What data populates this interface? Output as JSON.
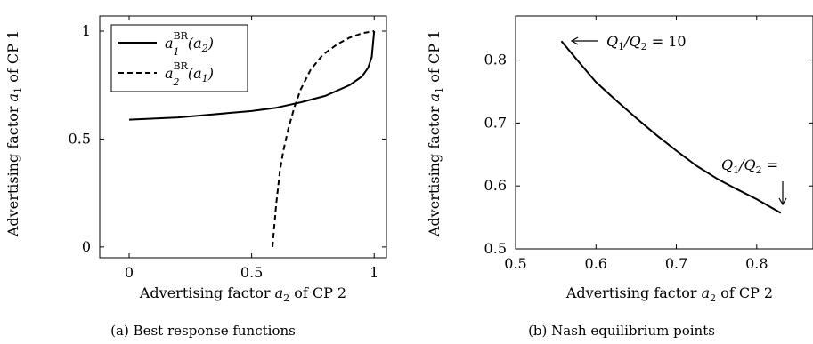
{
  "chart_data": [
    {
      "type": "line",
      "caption": "(a) Best response functions",
      "xlabel": "Advertising factor a2 of CP 2",
      "ylabel": "Advertising factor a1 of CP 1",
      "xlim": [
        -0.12,
        1.05
      ],
      "ylim": [
        -0.05,
        1.07
      ],
      "xticks": [
        "0",
        "0.5",
        "1"
      ],
      "yticks": [
        "0",
        "0.5",
        "1"
      ],
      "legend_position": "top-left",
      "series": [
        {
          "name": "a_1^BR(a_2)",
          "style": "solid",
          "x": [
            0,
            0.1,
            0.2,
            0.3,
            0.4,
            0.5,
            0.6,
            0.7,
            0.8,
            0.85,
            0.9,
            0.95,
            0.975,
            0.99,
            1.0
          ],
          "y": [
            0.59,
            0.595,
            0.6,
            0.61,
            0.62,
            0.63,
            0.645,
            0.67,
            0.7,
            0.725,
            0.75,
            0.79,
            0.83,
            0.88,
            1.0
          ]
        },
        {
          "name": "a_2^BR(a_1)",
          "style": "dashed",
          "x": [
            0.585,
            0.6,
            0.615,
            0.63,
            0.65,
            0.675,
            0.7,
            0.74,
            0.79,
            0.85,
            0.9,
            0.95,
            1.0
          ],
          "y": [
            0.0,
            0.2,
            0.35,
            0.45,
            0.55,
            0.65,
            0.73,
            0.82,
            0.89,
            0.94,
            0.97,
            0.99,
            1.0
          ]
        }
      ]
    },
    {
      "type": "line",
      "caption": "(b) Nash equilibrium points",
      "xlabel": "Advertising factor a2 of CP 2",
      "ylabel": "Advertising factor a1 of CP 1",
      "xlim": [
        0.5,
        0.87
      ],
      "ylim": [
        0.5,
        0.87
      ],
      "xticks": [
        "0.5",
        "0.6",
        "0.7",
        "0.8"
      ],
      "yticks": [
        "0.5",
        "0.6",
        "0.7",
        "0.8"
      ],
      "series": [
        {
          "x": [
            0.557,
            0.58,
            0.6,
            0.625,
            0.65,
            0.675,
            0.7,
            0.725,
            0.75,
            0.775,
            0.8,
            0.83
          ],
          "y": [
            0.83,
            0.795,
            0.765,
            0.736,
            0.708,
            0.681,
            0.656,
            0.632,
            0.612,
            0.595,
            0.579,
            0.557
          ]
        }
      ],
      "annotations": [
        {
          "text": "Q1/Q2 = 10"
        },
        {
          "text": "Q1/Q2 ="
        }
      ]
    }
  ]
}
